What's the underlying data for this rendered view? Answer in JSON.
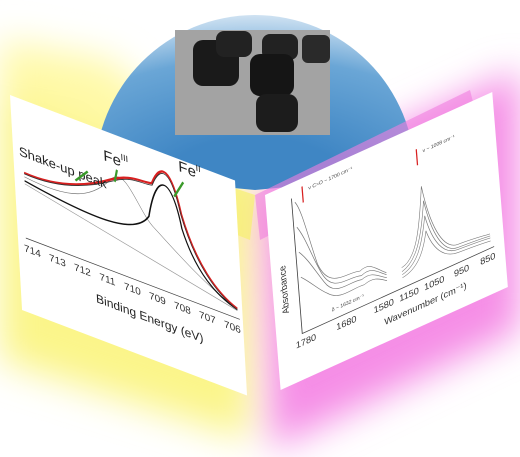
{
  "xps_panel": {
    "annotations": [
      "Shake-up peak"
    ],
    "fe3": {
      "symbol": "Fe",
      "oxidation": "III"
    },
    "fe2": {
      "symbol": "Fe",
      "oxidation": "II"
    },
    "x_axis": {
      "ticks": [
        714,
        713,
        712,
        711,
        710,
        709,
        708,
        707,
        706
      ],
      "label": "Binding Energy (eV)"
    }
  },
  "ir_panel": {
    "y_axis": {
      "label": "Absorbance"
    },
    "x_axis": {
      "ticks": [
        1780,
        1680,
        1580,
        1150,
        1050,
        950,
        850
      ],
      "label": "Wavenumber (cm⁻¹)"
    },
    "annotations": [
      "ν C=O ~ 1700 cm⁻¹",
      "δ ~ 1632 cm⁻¹",
      "ν ~ 1008 cm⁻¹"
    ]
  }
}
